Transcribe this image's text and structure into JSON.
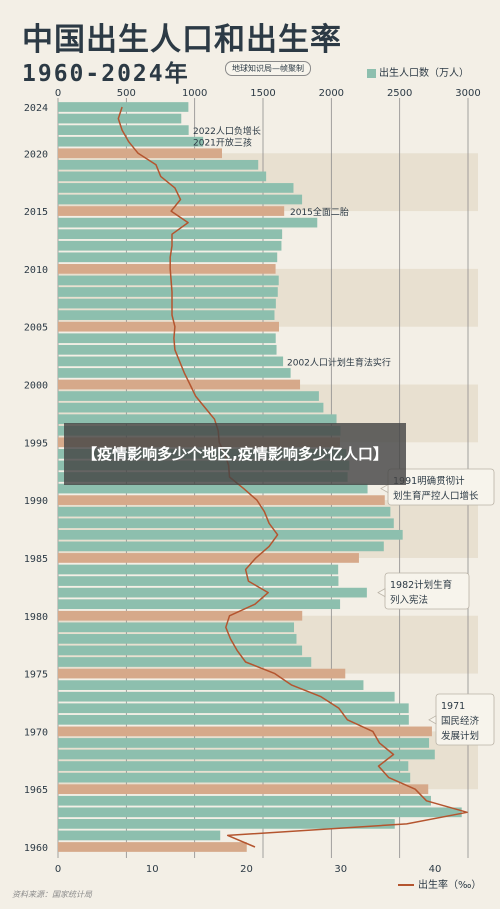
{
  "header": {
    "title": "中国出生人口和出生率",
    "years": "1960-2024年",
    "credit": "地球知识局—帧聚制",
    "legend_bar": "出生人口数（万人）",
    "legend_line": "出生率（‰）",
    "source": "资料来源：国家统计局"
  },
  "overlay": {
    "text": "【疫情影响多少个地区,疫情影响多少亿人口】"
  },
  "colors": {
    "bar": "#8dbfae",
    "highlight": "#d6a98a",
    "line": "#b4552f",
    "grid": "#8c8c8c"
  },
  "chart_data": {
    "type": "bar",
    "orientation": "horizontal",
    "top_axis": {
      "ticks": [
        0,
        500,
        1000,
        1500,
        2000,
        2500,
        3000
      ],
      "range": [
        0,
        3000
      ],
      "unit": "万人"
    },
    "bottom_axis": {
      "ticks": [
        0,
        10,
        20,
        30,
        40
      ],
      "range": [
        0,
        43.5
      ],
      "unit": "‰"
    },
    "year_ticks": [
      2024,
      2020,
      2015,
      2010,
      2005,
      2000,
      1995,
      1990,
      1985,
      1980,
      1975,
      1970,
      1965,
      1960
    ],
    "highlight_years": [
      1960,
      1965,
      1970,
      1975,
      1980,
      1985,
      1990,
      1995,
      2000,
      2005,
      2010,
      2015,
      2020
    ],
    "years": [
      2024,
      2023,
      2022,
      2021,
      2020,
      2019,
      2018,
      2017,
      2016,
      2015,
      2014,
      2013,
      2012,
      2011,
      2010,
      2009,
      2008,
      2007,
      2006,
      2005,
      2004,
      2003,
      2002,
      2001,
      2000,
      1999,
      1998,
      1997,
      1996,
      1995,
      1994,
      1993,
      1992,
      1991,
      1990,
      1989,
      1988,
      1987,
      1986,
      1985,
      1984,
      1983,
      1982,
      1981,
      1980,
      1979,
      1978,
      1977,
      1976,
      1975,
      1974,
      1973,
      1972,
      1971,
      1970,
      1969,
      1968,
      1967,
      1966,
      1965,
      1964,
      1963,
      1962,
      1961,
      1960
    ],
    "series": [
      {
        "name": "出生人口数（万人）",
        "values": [
          954,
          902,
          956,
          1062,
          1200,
          1465,
          1523,
          1723,
          1786,
          1655,
          1897,
          1640,
          1635,
          1604,
          1592,
          1615,
          1608,
          1594,
          1584,
          1617,
          1593,
          1599,
          1647,
          1702,
          1771,
          1909,
          1942,
          2038,
          2067,
          2063,
          2110,
          2132,
          2119,
          2265,
          2391,
          2432,
          2457,
          2522,
          2384,
          2202,
          2050,
          2052,
          2260,
          2064,
          1787,
          1727,
          1745,
          1786,
          1853,
          2102,
          2235,
          2463,
          2566,
          2567,
          2736,
          2715,
          2757,
          2563,
          2577,
          2709,
          2729,
          2954,
          2464,
          1187,
          1381
        ]
      },
      {
        "name": "出生率（‰）",
        "values": [
          6.8,
          6.4,
          6.8,
          7.5,
          8.5,
          10.4,
          10.9,
          12.4,
          13.0,
          12.0,
          13.8,
          12.1,
          12.1,
          11.9,
          11.9,
          12.0,
          12.1,
          12.1,
          12.1,
          12.4,
          12.3,
          12.4,
          12.9,
          13.4,
          14.0,
          14.6,
          15.6,
          16.6,
          17.0,
          17.1,
          17.7,
          18.1,
          18.2,
          19.7,
          21.1,
          21.9,
          22.4,
          23.3,
          22.4,
          21.0,
          19.9,
          20.2,
          22.3,
          20.9,
          18.2,
          17.8,
          18.3,
          19.0,
          19.9,
          23.0,
          24.8,
          27.9,
          29.8,
          30.7,
          33.4,
          34.1,
          35.6,
          34.0,
          35.1,
          37.9,
          39.1,
          43.4,
          37.0,
          18.0,
          20.9
        ]
      }
    ],
    "annotations": [
      {
        "year": 2022,
        "text": "2022人口负增长"
      },
      {
        "year": 2021,
        "text": "2021开放三孩"
      },
      {
        "year": 2015,
        "text": "2015全面二胎"
      },
      {
        "year": 2002,
        "text": "2002人口计划生育法实行"
      },
      {
        "year": 1991,
        "text": "1991明确贯彻计划生育严控人口增长"
      },
      {
        "year": 1982,
        "text": "1982计划生育列入宪法"
      },
      {
        "year": 1971,
        "text": "1971国民经济发展计划"
      }
    ]
  }
}
